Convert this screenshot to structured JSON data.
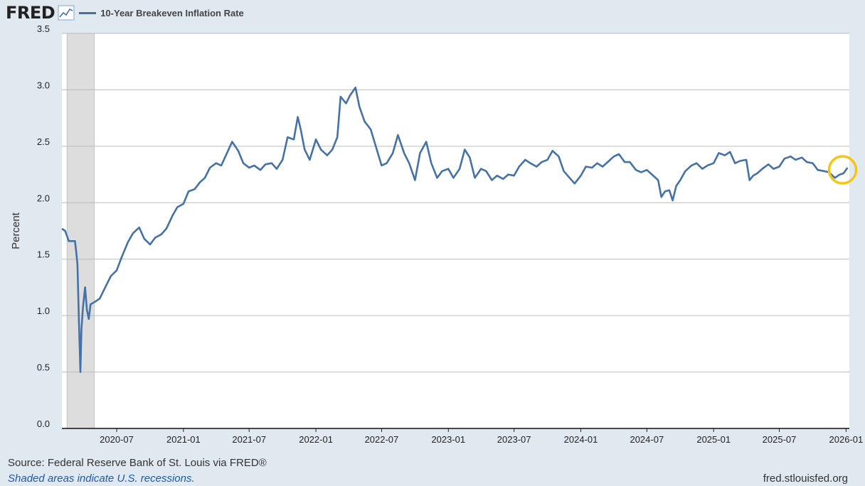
{
  "header": {
    "logo": "FRED",
    "series_label": "10-Year Breakeven Inflation Rate"
  },
  "footer": {
    "source": "Source: Federal Reserve Bank of St. Louis via FRED®",
    "recession_note": "Shaded areas indicate U.S. recessions.",
    "site": "fred.stlouisfed.org"
  },
  "colors": {
    "line": "#4472a8",
    "recession": "#dddddd",
    "plot_bg": "#ffffff",
    "page_bg": "#e1e9f0",
    "highlight": "#f5c518"
  },
  "icons": [
    "chart-icon"
  ],
  "chart_data": {
    "type": "line",
    "ylabel": "Percent",
    "ylim": [
      0,
      3.5
    ],
    "xlim": [
      "2020-02-01",
      "2026-01-10"
    ],
    "y_ticks": [
      "0.0",
      "0.5",
      "1.0",
      "1.5",
      "2.0",
      "2.5",
      "3.0",
      "3.5"
    ],
    "x_ticks": [
      "2020-07",
      "2021-01",
      "2021-07",
      "2022-01",
      "2022-07",
      "2023-01",
      "2023-07",
      "2024-01",
      "2024-07",
      "2025-01",
      "2025-07",
      "2026-01"
    ],
    "grid": true,
    "recessions": [
      {
        "start": "2020-02-15",
        "end": "2020-04-30"
      }
    ],
    "highlight": "last-value",
    "series": [
      {
        "name": "10-Year Breakeven Inflation Rate",
        "points": [
          [
            "2020-02-01",
            1.77
          ],
          [
            "2020-02-10",
            1.75
          ],
          [
            "2020-02-20",
            1.66
          ],
          [
            "2020-03-01",
            1.66
          ],
          [
            "2020-03-08",
            1.66
          ],
          [
            "2020-03-12",
            1.55
          ],
          [
            "2020-03-15",
            1.45
          ],
          [
            "2020-03-19",
            0.94
          ],
          [
            "2020-03-22",
            0.62
          ],
          [
            "2020-03-23",
            0.5
          ],
          [
            "2020-03-26",
            0.88
          ],
          [
            "2020-03-30",
            1.07
          ],
          [
            "2020-04-05",
            1.25
          ],
          [
            "2020-04-10",
            1.05
          ],
          [
            "2020-04-15",
            0.97
          ],
          [
            "2020-04-20",
            1.1
          ],
          [
            "2020-05-01",
            1.12
          ],
          [
            "2020-05-15",
            1.15
          ],
          [
            "2020-06-01",
            1.26
          ],
          [
            "2020-06-15",
            1.35
          ],
          [
            "2020-07-01",
            1.4
          ],
          [
            "2020-07-15",
            1.52
          ],
          [
            "2020-08-01",
            1.65
          ],
          [
            "2020-08-15",
            1.73
          ],
          [
            "2020-09-01",
            1.78
          ],
          [
            "2020-09-15",
            1.68
          ],
          [
            "2020-10-01",
            1.63
          ],
          [
            "2020-10-15",
            1.69
          ],
          [
            "2020-11-01",
            1.72
          ],
          [
            "2020-11-15",
            1.77
          ],
          [
            "2020-12-01",
            1.88
          ],
          [
            "2020-12-15",
            1.96
          ],
          [
            "2021-01-01",
            1.99
          ],
          [
            "2021-01-15",
            2.1
          ],
          [
            "2021-02-01",
            2.12
          ],
          [
            "2021-02-15",
            2.18
          ],
          [
            "2021-03-01",
            2.22
          ],
          [
            "2021-03-15",
            2.31
          ],
          [
            "2021-04-01",
            2.35
          ],
          [
            "2021-04-15",
            2.33
          ],
          [
            "2021-05-01",
            2.44
          ],
          [
            "2021-05-15",
            2.54
          ],
          [
            "2021-06-01",
            2.46
          ],
          [
            "2021-06-15",
            2.35
          ],
          [
            "2021-07-01",
            2.31
          ],
          [
            "2021-07-15",
            2.33
          ],
          [
            "2021-08-01",
            2.29
          ],
          [
            "2021-08-15",
            2.34
          ],
          [
            "2021-09-01",
            2.35
          ],
          [
            "2021-09-15",
            2.3
          ],
          [
            "2021-10-01",
            2.38
          ],
          [
            "2021-10-15",
            2.58
          ],
          [
            "2021-11-01",
            2.56
          ],
          [
            "2021-11-12",
            2.76
          ],
          [
            "2021-11-20",
            2.65
          ],
          [
            "2021-12-01",
            2.47
          ],
          [
            "2021-12-15",
            2.38
          ],
          [
            "2022-01-01",
            2.56
          ],
          [
            "2022-01-15",
            2.47
          ],
          [
            "2022-02-01",
            2.42
          ],
          [
            "2022-02-15",
            2.47
          ],
          [
            "2022-03-01",
            2.58
          ],
          [
            "2022-03-10",
            2.94
          ],
          [
            "2022-03-25",
            2.88
          ],
          [
            "2022-04-05",
            2.95
          ],
          [
            "2022-04-20",
            3.02
          ],
          [
            "2022-05-01",
            2.85
          ],
          [
            "2022-05-15",
            2.72
          ],
          [
            "2022-06-01",
            2.65
          ],
          [
            "2022-06-15",
            2.5
          ],
          [
            "2022-07-01",
            2.33
          ],
          [
            "2022-07-15",
            2.35
          ],
          [
            "2022-08-01",
            2.44
          ],
          [
            "2022-08-15",
            2.6
          ],
          [
            "2022-09-01",
            2.44
          ],
          [
            "2022-09-15",
            2.35
          ],
          [
            "2022-10-01",
            2.2
          ],
          [
            "2022-10-15",
            2.44
          ],
          [
            "2022-11-01",
            2.54
          ],
          [
            "2022-11-15",
            2.35
          ],
          [
            "2022-12-01",
            2.22
          ],
          [
            "2022-12-15",
            2.28
          ],
          [
            "2023-01-01",
            2.3
          ],
          [
            "2023-01-15",
            2.22
          ],
          [
            "2023-02-01",
            2.3
          ],
          [
            "2023-02-15",
            2.47
          ],
          [
            "2023-03-01",
            2.4
          ],
          [
            "2023-03-15",
            2.22
          ],
          [
            "2023-04-01",
            2.3
          ],
          [
            "2023-04-15",
            2.28
          ],
          [
            "2023-05-01",
            2.2
          ],
          [
            "2023-05-15",
            2.24
          ],
          [
            "2023-06-01",
            2.21
          ],
          [
            "2023-06-15",
            2.25
          ],
          [
            "2023-07-01",
            2.24
          ],
          [
            "2023-07-15",
            2.32
          ],
          [
            "2023-08-01",
            2.38
          ],
          [
            "2023-08-15",
            2.35
          ],
          [
            "2023-09-01",
            2.32
          ],
          [
            "2023-09-15",
            2.36
          ],
          [
            "2023-10-01",
            2.38
          ],
          [
            "2023-10-15",
            2.46
          ],
          [
            "2023-11-01",
            2.41
          ],
          [
            "2023-11-15",
            2.28
          ],
          [
            "2023-12-01",
            2.22
          ],
          [
            "2023-12-15",
            2.17
          ],
          [
            "2024-01-01",
            2.24
          ],
          [
            "2024-01-15",
            2.32
          ],
          [
            "2024-02-01",
            2.31
          ],
          [
            "2024-02-15",
            2.35
          ],
          [
            "2024-03-01",
            2.32
          ],
          [
            "2024-03-15",
            2.36
          ],
          [
            "2024-04-01",
            2.41
          ],
          [
            "2024-04-15",
            2.43
          ],
          [
            "2024-05-01",
            2.36
          ],
          [
            "2024-05-15",
            2.36
          ],
          [
            "2024-06-01",
            2.29
          ],
          [
            "2024-06-15",
            2.27
          ],
          [
            "2024-07-01",
            2.29
          ],
          [
            "2024-07-15",
            2.25
          ],
          [
            "2024-08-01",
            2.2
          ],
          [
            "2024-08-10",
            2.05
          ],
          [
            "2024-08-20",
            2.1
          ],
          [
            "2024-09-01",
            2.11
          ],
          [
            "2024-09-10",
            2.02
          ],
          [
            "2024-09-20",
            2.15
          ],
          [
            "2024-10-01",
            2.2
          ],
          [
            "2024-10-15",
            2.28
          ],
          [
            "2024-11-01",
            2.33
          ],
          [
            "2024-11-15",
            2.35
          ],
          [
            "2024-12-01",
            2.3
          ],
          [
            "2024-12-15",
            2.33
          ],
          [
            "2025-01-01",
            2.35
          ],
          [
            "2025-01-15",
            2.44
          ],
          [
            "2025-02-01",
            2.42
          ],
          [
            "2025-02-15",
            2.45
          ],
          [
            "2025-03-01",
            2.35
          ],
          [
            "2025-03-15",
            2.37
          ],
          [
            "2025-04-01",
            2.38
          ],
          [
            "2025-04-10",
            2.2
          ],
          [
            "2025-04-20",
            2.24
          ],
          [
            "2025-05-01",
            2.26
          ],
          [
            "2025-05-15",
            2.3
          ],
          [
            "2025-06-01",
            2.34
          ],
          [
            "2025-06-15",
            2.3
          ],
          [
            "2025-07-01",
            2.32
          ],
          [
            "2025-07-15",
            2.39
          ],
          [
            "2025-08-01",
            2.41
          ],
          [
            "2025-08-15",
            2.38
          ],
          [
            "2025-09-01",
            2.4
          ],
          [
            "2025-09-15",
            2.36
          ],
          [
            "2025-10-01",
            2.35
          ],
          [
            "2025-10-15",
            2.29
          ],
          [
            "2025-11-01",
            2.28
          ],
          [
            "2025-11-15",
            2.27
          ],
          [
            "2025-12-01",
            2.22
          ],
          [
            "2025-12-15",
            2.25
          ],
          [
            "2025-12-25",
            2.26
          ],
          [
            "2026-01-05",
            2.31
          ]
        ]
      }
    ]
  }
}
